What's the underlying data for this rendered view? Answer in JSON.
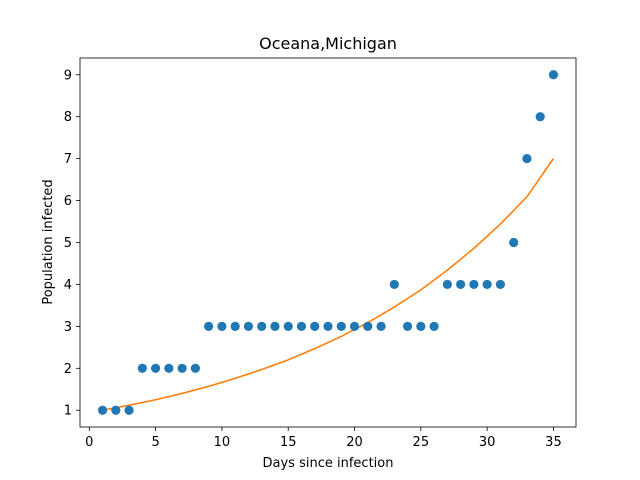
{
  "chart_data": {
    "type": "scatter",
    "title": "Oceana,Michigan",
    "xlabel": "Days since infection",
    "ylabel": "Population infected",
    "xlim": [
      -0.7,
      36.7
    ],
    "ylim": [
      0.6,
      9.4
    ],
    "xticks": [
      0,
      5,
      10,
      15,
      20,
      25,
      30,
      35
    ],
    "yticks": [
      1,
      2,
      3,
      4,
      5,
      6,
      7,
      8,
      9
    ],
    "grid": false,
    "series": [
      {
        "kind": "scatter",
        "color": "#1f77b4",
        "x": [
          1,
          2,
          3,
          4,
          5,
          6,
          7,
          8,
          9,
          10,
          11,
          12,
          13,
          14,
          15,
          16,
          17,
          18,
          19,
          20,
          21,
          22,
          23,
          24,
          25,
          26,
          27,
          28,
          29,
          30,
          31,
          32,
          33,
          34,
          35
        ],
        "y": [
          1,
          1,
          1,
          2,
          2,
          2,
          2,
          2,
          3,
          3,
          3,
          3,
          3,
          3,
          3,
          3,
          3,
          3,
          3,
          3,
          3,
          3,
          4,
          3,
          3,
          3,
          4,
          4,
          4,
          4,
          4,
          5,
          7,
          8,
          9
        ]
      },
      {
        "kind": "line",
        "color": "#ff7f0e",
        "x": [
          1,
          3,
          5,
          7,
          9,
          11,
          13,
          15,
          17,
          19,
          21,
          23,
          25,
          27,
          29,
          31,
          33,
          35
        ],
        "y": [
          1.0,
          1.12,
          1.25,
          1.4,
          1.57,
          1.76,
          1.97,
          2.2,
          2.47,
          2.76,
          3.09,
          3.46,
          3.87,
          4.34,
          4.86,
          5.44,
          6.09,
          7.0
        ]
      }
    ]
  }
}
